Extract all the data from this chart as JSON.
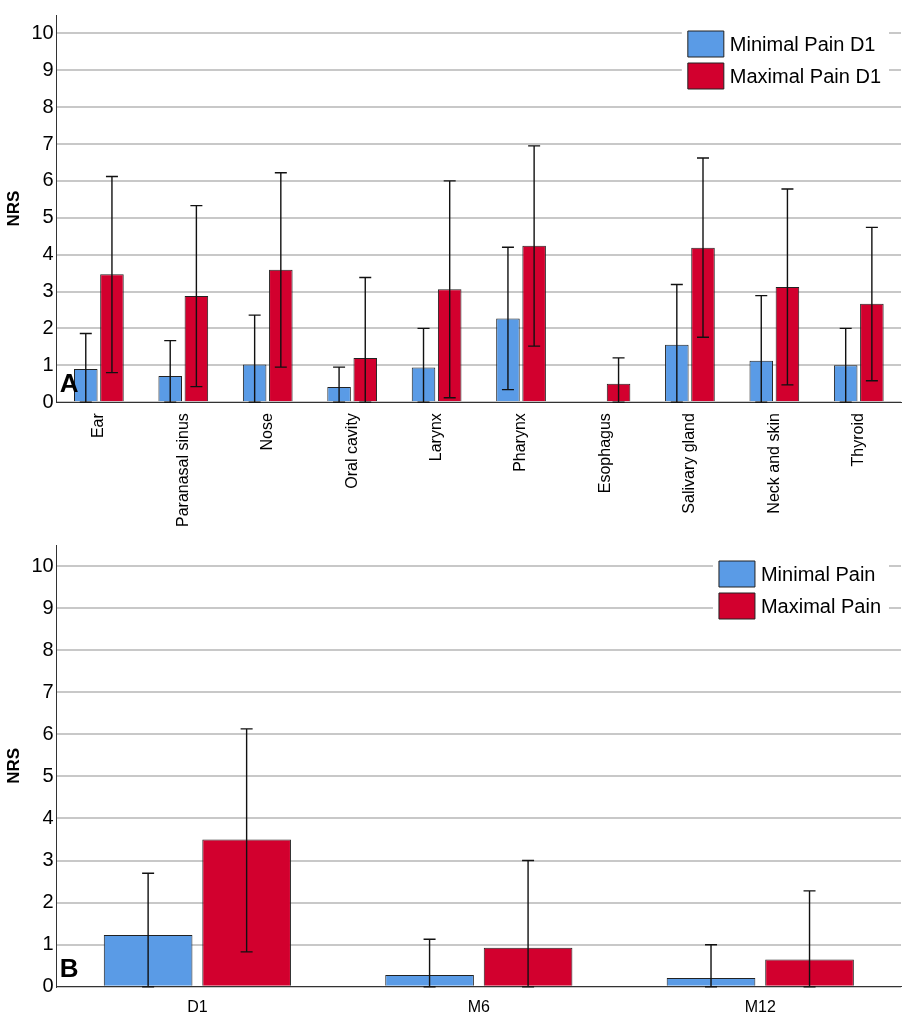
{
  "chart_data": [
    {
      "type": "bar",
      "ylabel": "NRS",
      "categories": [
        "Ear",
        "Paranasal sinus",
        "Nose",
        "Oral cavity",
        "Larynx",
        "Pharynx",
        "Esophagus",
        "Salivary gland",
        "Neck and skin",
        "Thyroid"
      ],
      "series": [
        {
          "name": "Minimal Pain D1",
          "color": "#5a9be6",
          "values": [
            0.9,
            0.71,
            1.02,
            0.41,
            0.94,
            2.27,
            0,
            1.56,
            1.12,
            1.0
          ],
          "errors": [
            [
              0,
              1.86
            ],
            [
              0,
              1.67
            ],
            [
              0,
              2.36
            ],
            [
              0,
              0.95
            ],
            [
              0,
              2.0
            ],
            [
              0.34,
              4.2
            ],
            null,
            [
              0,
              3.19
            ],
            [
              0,
              2.89
            ],
            [
              0,
              2.0
            ]
          ]
        },
        {
          "name": "Maximal Pain D1",
          "color": "#d2002e",
          "values": [
            3.47,
            2.88,
            3.59,
            1.2,
            3.06,
            4.24,
            0.5,
            4.19,
            3.12,
            2.67
          ],
          "errors": [
            [
              0.8,
              6.12
            ],
            [
              0.42,
              5.33
            ],
            [
              0.95,
              6.22
            ],
            [
              0,
              3.38
            ],
            [
              0.12,
              6.0
            ],
            [
              1.52,
              6.95
            ],
            [
              0,
              1.2
            ],
            [
              1.76,
              6.62
            ],
            [
              0.47,
              5.78
            ],
            [
              0.58,
              4.74
            ]
          ]
        }
      ],
      "ylim": [
        0,
        10.5
      ],
      "yticks": [
        0,
        1,
        2,
        3,
        4,
        5,
        6,
        7,
        8,
        9,
        10
      ],
      "grid": "y",
      "legend": "top right",
      "annotations": [
        "A"
      ]
    },
    {
      "type": "bar",
      "ylabel": "NRS",
      "categories": [
        "D1",
        "M6",
        "M12"
      ],
      "series": [
        {
          "name": "Minimal Pain",
          "color": "#5a9be6",
          "values": [
            1.23,
            0.28,
            0.21
          ],
          "errors": [
            [
              0,
              2.7
            ],
            [
              0,
              1.13
            ],
            [
              0,
              1.0
            ]
          ]
        },
        {
          "name": "Maximal Pain",
          "color": "#d2002e",
          "values": [
            3.5,
            0.93,
            0.65
          ],
          "errors": [
            [
              0.83,
              6.13
            ],
            [
              0,
              3.0
            ],
            [
              0,
              2.28
            ]
          ]
        }
      ],
      "ylim": [
        0,
        10.5
      ],
      "yticks": [
        0,
        1,
        2,
        3,
        4,
        5,
        6,
        7,
        8,
        9,
        10
      ],
      "grid": "y",
      "legend": "top right",
      "annotations": [
        "B"
      ]
    }
  ]
}
